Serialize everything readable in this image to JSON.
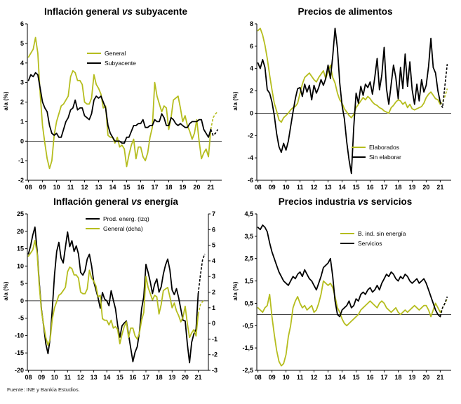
{
  "footer": {
    "text": "Fuente: INE y Bankia Estudios."
  },
  "colors": {
    "series_yellow": "#b5bd1e",
    "series_black": "#000000"
  },
  "chart_data": [
    {
      "type": "line",
      "title_prefix": "Inflación general ",
      "title_vs": "vs",
      "title_suffix": " subyacente",
      "ylabel": "a/a (%)",
      "ylim": [
        -2,
        6
      ],
      "ytick_vals": [
        6,
        5,
        4,
        3,
        2,
        1,
        0,
        -1,
        -2
      ],
      "ytick_labels": [
        "6",
        "5",
        "4",
        "3",
        "2",
        "1",
        "0",
        "-1",
        "-2"
      ],
      "x_start": 2008,
      "x_step": 0.166667,
      "x_domain": [
        2007.92,
        2021.78
      ],
      "xtick_start": 2008,
      "xtick_labels": [
        "08",
        "09",
        "10",
        "11",
        "12",
        "13",
        "14",
        "15",
        "16",
        "17",
        "18",
        "19",
        "20",
        "21"
      ],
      "grid": false,
      "legend_position": "top-center",
      "series": [
        {
          "name": "General",
          "color": "#b5bd1e",
          "axis": "left",
          "dash_tail": 3,
          "values": [
            4.3,
            4.5,
            4.7,
            5.3,
            4.5,
            2.4,
            0.8,
            -0.1,
            -0.9,
            -1.4,
            -1.0,
            0.3,
            1.0,
            1.4,
            1.8,
            1.9,
            2.1,
            2.3,
            3.3,
            3.6,
            3.5,
            3.1,
            3.1,
            2.9,
            2.0,
            1.9,
            1.9,
            2.2,
            3.4,
            2.9,
            2.7,
            2.4,
            1.7,
            1.8,
            0.3,
            0.2,
            0.2,
            -0.1,
            0.2,
            -0.3,
            -0.2,
            -0.4,
            -1.3,
            -0.7,
            -0.2,
            0.1,
            -0.9,
            -0.3,
            -0.3,
            -0.8,
            -1.0,
            -0.6,
            0.2,
            0.7,
            3.0,
            2.3,
            1.9,
            1.5,
            1.8,
            1.7,
            0.6,
            1.2,
            2.1,
            2.2,
            2.3,
            1.7,
            1.0,
            1.3,
            0.8,
            0.5,
            0.1,
            0.4,
            1.1,
            0.0,
            -0.9,
            -0.6,
            -0.4,
            -0.8,
            0.6,
            1.2,
            1.4,
            1.5
          ]
        },
        {
          "name": "Subyacente",
          "color": "#000000",
          "axis": "left",
          "dash_tail": 3,
          "values": [
            3.1,
            3.4,
            3.3,
            3.5,
            3.4,
            2.7,
            2.0,
            1.7,
            1.5,
            0.8,
            0.4,
            0.3,
            0.4,
            0.2,
            0.2,
            0.6,
            1.0,
            1.2,
            1.6,
            1.7,
            2.1,
            1.6,
            1.7,
            1.7,
            1.3,
            1.2,
            1.1,
            1.4,
            2.1,
            2.3,
            2.2,
            2.3,
            2.0,
            1.7,
            0.8,
            0.4,
            0.2,
            0.0,
            0.0,
            0.0,
            -0.1,
            -0.1,
            0.2,
            0.2,
            0.5,
            0.8,
            0.8,
            0.9,
            0.9,
            1.1,
            0.7,
            0.7,
            0.8,
            0.8,
            1.1,
            1.0,
            1.0,
            1.4,
            1.2,
            0.8,
            0.8,
            1.2,
            1.1,
            0.9,
            0.8,
            0.9,
            0.8,
            0.7,
            0.7,
            0.9,
            1.0,
            1.0,
            1.0,
            1.1,
            1.1,
            0.6,
            0.4,
            0.2,
            0.6,
            0.3,
            0.4,
            0.6
          ]
        }
      ]
    },
    {
      "type": "line",
      "title_prefix": "Precios de alimentos",
      "title_vs": "",
      "title_suffix": "",
      "ylabel": "a/a (%)",
      "ylim": [
        -6,
        8
      ],
      "ytick_vals": [
        8,
        6,
        4,
        2,
        0,
        -2,
        -4,
        -6
      ],
      "ytick_labels": [
        "8",
        "6",
        "4",
        "2",
        "0",
        "-2",
        "-4",
        "-6"
      ],
      "x_start": 2008,
      "x_step": 0.166667,
      "x_domain": [
        2007.92,
        2021.78
      ],
      "xtick_start": 2008,
      "xtick_labels": [
        "08",
        "09",
        "10",
        "11",
        "12",
        "13",
        "14",
        "15",
        "16",
        "17",
        "18",
        "19",
        "20",
        "21"
      ],
      "grid": false,
      "legend_position": "bottom-right",
      "series": [
        {
          "name": "Elaborados",
          "color": "#b5bd1e",
          "axis": "left",
          "dash_tail": 3,
          "values": [
            7.4,
            7.6,
            7.0,
            6.1,
            4.9,
            3.4,
            2.1,
            0.9,
            0.2,
            -0.6,
            -0.8,
            -0.4,
            -0.2,
            0.0,
            0.3,
            0.5,
            0.6,
            0.9,
            1.8,
            2.6,
            3.2,
            3.4,
            3.6,
            3.3,
            3.0,
            2.8,
            3.2,
            3.5,
            3.8,
            3.1,
            3.7,
            4.3,
            3.2,
            2.7,
            1.8,
            1.2,
            0.9,
            0.4,
            0.1,
            -0.2,
            -0.4,
            -0.1,
            0.5,
            0.8,
            1.1,
            1.4,
            1.2,
            1.5,
            1.3,
            1.0,
            0.8,
            0.7,
            0.5,
            0.4,
            0.2,
            0.1,
            0.0,
            0.5,
            0.7,
            1.0,
            1.2,
            1.1,
            0.8,
            1.0,
            0.5,
            0.8,
            0.4,
            0.3,
            0.4,
            0.5,
            0.6,
            0.9,
            1.4,
            1.7,
            1.9,
            1.6,
            1.3,
            1.2,
            0.8,
            1.0,
            1.5,
            2.2
          ]
        },
        {
          "name": "Sin elaborar",
          "color": "#000000",
          "axis": "left",
          "dash_tail": 3,
          "values": [
            4.5,
            4.0,
            4.8,
            4.1,
            2.1,
            1.8,
            1.0,
            -0.2,
            -1.8,
            -3.0,
            -3.5,
            -2.7,
            -3.3,
            -2.5,
            -1.2,
            0.1,
            1.3,
            2.2,
            2.3,
            1.5,
            2.6,
            1.9,
            2.5,
            1.2,
            2.5,
            1.8,
            2.3,
            3.0,
            2.5,
            3.1,
            4.3,
            3.1,
            5.1,
            7.6,
            5.8,
            2.7,
            0.7,
            -0.5,
            -2.6,
            -4.2,
            -5.4,
            -1.2,
            1.8,
            0.9,
            2.4,
            1.6,
            2.6,
            2.3,
            2.8,
            1.7,
            3.2,
            4.9,
            2.1,
            3.4,
            5.9,
            2.2,
            0.8,
            2.6,
            4.3,
            3.2,
            1.3,
            4.1,
            2.2,
            5.3,
            2.4,
            4.6,
            2.1,
            0.8,
            2.6,
            1.1,
            3.0,
            1.9,
            2.5,
            4.2,
            6.7,
            4.1,
            3.6,
            2.0,
            1.0,
            0.5,
            2.5,
            4.4
          ]
        }
      ]
    },
    {
      "type": "line",
      "title_prefix": "Inflación general ",
      "title_vs": "vs",
      "title_suffix": " energía",
      "ylabel": "a/a (%)",
      "ylim": [
        -20,
        25
      ],
      "ytick_vals": [
        25,
        20,
        15,
        10,
        5,
        0,
        -5,
        -10,
        -15,
        -20
      ],
      "ytick_labels": [
        "25",
        "20",
        "15",
        "10",
        "5",
        "0",
        "-5",
        "-10",
        "-15",
        "-20"
      ],
      "ylim_right": [
        -3,
        7
      ],
      "ytick_vals_right": [
        7,
        6,
        5,
        4,
        3,
        2,
        1,
        0,
        -1,
        -2,
        -3
      ],
      "ytick_labels_right": [
        "7",
        "6",
        "5",
        "4",
        "3",
        "2",
        "1",
        "0",
        "-1",
        "-2",
        "-3"
      ],
      "x_start": 2008,
      "x_step": 0.166667,
      "x_domain": [
        2007.92,
        2021.78
      ],
      "xtick_start": 2008,
      "xtick_labels": [
        "08",
        "09",
        "10",
        "11",
        "12",
        "13",
        "14",
        "15",
        "16",
        "17",
        "18",
        "19",
        "20",
        "21"
      ],
      "grid": false,
      "legend_position": "top-right",
      "series": [
        {
          "name": "Prod. energ. (izq)",
          "color": "#000000",
          "axis": "left",
          "dash_tail": 3,
          "values": [
            13.5,
            15.8,
            18.9,
            21.2,
            14.5,
            5.1,
            -2.5,
            -7.2,
            -12.4,
            -15.2,
            -10.8,
            -2.1,
            7.5,
            14.2,
            16.8,
            12.3,
            10.9,
            15.4,
            19.8,
            15.6,
            17.3,
            14.2,
            15.8,
            13.5,
            8.2,
            7.4,
            8.7,
            12.0,
            13.4,
            10.1,
            5.5,
            3.2,
            0.8,
            -2.1,
            2.4,
            0.5,
            0.0,
            -1.4,
            2.9,
            0.2,
            -2.3,
            -7.1,
            -10.5,
            -7.2,
            -6.4,
            -5.8,
            -9.7,
            -13.6,
            -17.5,
            -14.8,
            -13.2,
            -9.0,
            -2.3,
            1.2,
            10.5,
            8.2,
            5.4,
            2.1,
            4.8,
            6.3,
            2.5,
            4.0,
            7.7,
            10.3,
            12.0,
            8.9,
            3.1,
            1.8,
            3.5,
            0.9,
            -2.4,
            -5.6,
            -5.8,
            -12.4,
            -17.8,
            -11.9,
            -9.5,
            -8.2,
            2.1,
            7.4,
            11.8,
            13.5
          ]
        },
        {
          "name": "General (dcha)",
          "color": "#b5bd1e",
          "axis": "right",
          "dash_tail": 3,
          "values": [
            4.3,
            4.5,
            4.7,
            5.3,
            4.5,
            2.4,
            0.8,
            -0.1,
            -0.9,
            -1.4,
            -1.0,
            0.3,
            1.0,
            1.4,
            1.8,
            1.9,
            2.1,
            2.3,
            3.3,
            3.6,
            3.5,
            3.1,
            3.1,
            2.9,
            2.0,
            1.9,
            1.9,
            2.2,
            3.4,
            2.9,
            2.7,
            2.4,
            1.7,
            1.8,
            0.3,
            0.2,
            0.2,
            -0.1,
            0.2,
            -0.3,
            -0.2,
            -0.4,
            -1.3,
            -0.7,
            -0.2,
            0.1,
            -0.9,
            -0.3,
            -0.3,
            -0.8,
            -1.0,
            -0.6,
            0.2,
            0.7,
            3.0,
            2.3,
            1.9,
            1.5,
            1.8,
            1.7,
            0.6,
            1.2,
            2.1,
            2.2,
            2.3,
            1.7,
            1.0,
            1.3,
            0.8,
            0.5,
            0.1,
            0.4,
            1.1,
            0.0,
            -0.9,
            -0.6,
            -0.4,
            -0.8,
            0.6,
            1.2,
            1.4,
            1.5
          ]
        }
      ]
    },
    {
      "type": "line",
      "title_prefix": "Precios industria ",
      "title_vs": "vs",
      "title_suffix": " servicios",
      "ylabel": "a/a (%)",
      "ylim": [
        -2.5,
        4.5
      ],
      "ytick_vals": [
        4.5,
        3.5,
        2.5,
        1.5,
        0.5,
        -0.5,
        -1.5,
        -2.5
      ],
      "ytick_labels": [
        "4,5",
        "3,5",
        "2,5",
        "1,5",
        "0,5",
        "-0,5",
        "-1,5",
        "-2,5"
      ],
      "x_start": 2008,
      "x_step": 0.166667,
      "x_domain": [
        2007.92,
        2021.78
      ],
      "xtick_start": 2008,
      "xtick_labels": [
        "08",
        "09",
        "10",
        "11",
        "12",
        "13",
        "14",
        "15",
        "16",
        "17",
        "18",
        "19",
        "20",
        "21"
      ],
      "grid": false,
      "legend_position": "top-right",
      "series": [
        {
          "name": "B. ind. sin energía",
          "color": "#b5bd1e",
          "axis": "left",
          "dash_tail": 3,
          "values": [
            0.3,
            0.2,
            0.1,
            0.3,
            0.4,
            0.9,
            -0.1,
            -0.9,
            -1.6,
            -2.1,
            -2.3,
            -2.2,
            -1.8,
            -1.0,
            -0.5,
            0.3,
            0.6,
            0.8,
            0.5,
            0.3,
            0.4,
            0.2,
            0.3,
            0.4,
            0.1,
            0.2,
            0.5,
            0.9,
            1.5,
            1.4,
            1.3,
            1.4,
            1.2,
            0.8,
            0.3,
            0.1,
            -0.2,
            -0.4,
            -0.5,
            -0.4,
            -0.3,
            -0.2,
            -0.1,
            0.0,
            0.2,
            0.3,
            0.4,
            0.5,
            0.6,
            0.5,
            0.4,
            0.3,
            0.5,
            0.6,
            0.5,
            0.3,
            0.2,
            0.1,
            0.2,
            0.3,
            0.1,
            0.0,
            0.1,
            0.2,
            0.1,
            0.2,
            0.3,
            0.4,
            0.3,
            0.2,
            0.3,
            0.4,
            0.4,
            0.2,
            -0.1,
            0.2,
            0.5,
            0.3,
            0.1,
            0.3,
            0.5,
            0.7
          ]
        },
        {
          "name": "Servicios",
          "color": "#000000",
          "axis": "left",
          "dash_tail": 3,
          "values": [
            3.9,
            3.8,
            4.0,
            3.9,
            3.7,
            3.2,
            2.8,
            2.5,
            2.2,
            1.9,
            1.7,
            1.5,
            1.4,
            1.3,
            1.5,
            1.7,
            1.6,
            1.8,
            1.9,
            1.7,
            2.0,
            1.8,
            1.6,
            1.5,
            1.3,
            1.1,
            1.4,
            1.7,
            2.1,
            2.2,
            2.3,
            2.5,
            1.7,
            0.6,
            0.0,
            -0.1,
            0.2,
            0.3,
            0.4,
            0.6,
            0.3,
            0.4,
            0.7,
            0.6,
            0.9,
            1.0,
            0.9,
            1.1,
            1.2,
            1.0,
            1.1,
            1.3,
            1.1,
            1.4,
            1.6,
            1.8,
            1.7,
            1.9,
            1.8,
            1.6,
            1.5,
            1.7,
            1.6,
            1.8,
            1.7,
            1.5,
            1.4,
            1.5,
            1.6,
            1.4,
            1.5,
            1.6,
            1.4,
            1.1,
            0.8,
            0.5,
            0.2,
            0.0,
            -0.1,
            0.3,
            0.5,
            0.8
          ]
        }
      ]
    }
  ]
}
